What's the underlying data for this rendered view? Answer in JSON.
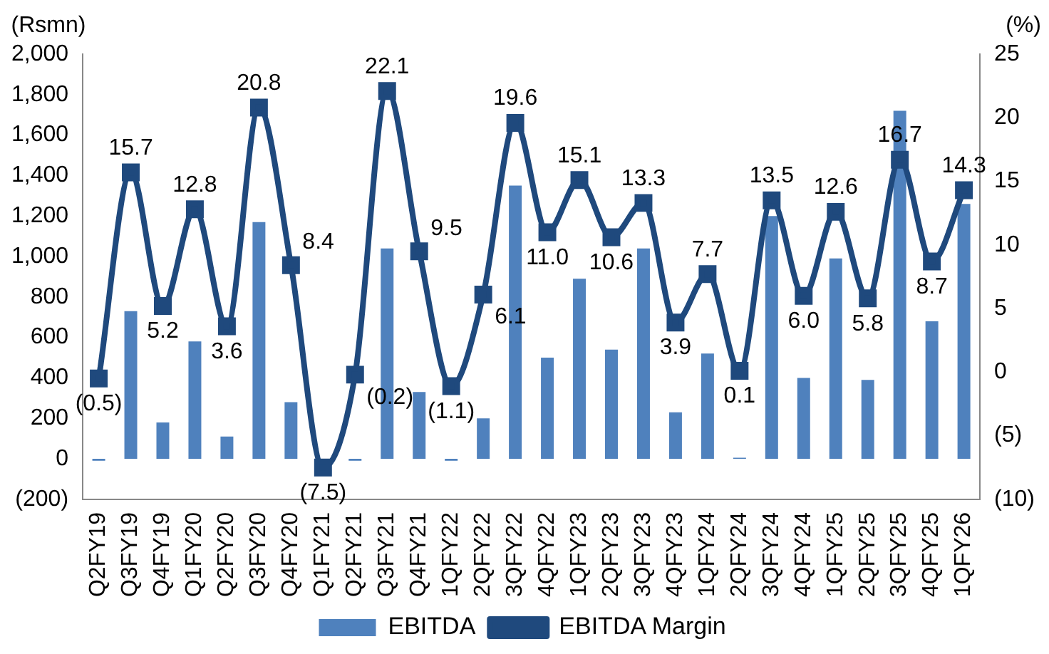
{
  "chart_data": {
    "type": "bar",
    "ylabel": "(Rsmn)",
    "y2label": "(%)",
    "categories": [
      "Q2FY19",
      "Q3FY19",
      "Q4FY19",
      "Q1FY20",
      "Q2FY20",
      "Q3FY20",
      "Q4FY20",
      "Q1FY21",
      "Q2FY21",
      "Q3FY21",
      "Q4FY21",
      "1QFY22",
      "2QFY22",
      "3QFY22",
      "4QFY22",
      "1QFY23",
      "2QFY23",
      "3QFY23",
      "4QFY23",
      "1QFY24",
      "2QFY24",
      "3QFY24",
      "4QFY24",
      "1QFY25",
      "2QFY25",
      "3QFY25",
      "4QFY25",
      "1QFY26"
    ],
    "series": [
      {
        "name": "EBITDA",
        "color": "#4f81bd",
        "values": [
          -10,
          730,
          180,
          580,
          110,
          1170,
          280,
          null,
          -10,
          1040,
          330,
          -10,
          200,
          1350,
          500,
          890,
          540,
          1040,
          230,
          520,
          5,
          1200,
          400,
          990,
          390,
          1720,
          680,
          1260
        ]
      },
      {
        "name": "EBITDA Margin",
        "type": "line",
        "axis": "y2",
        "color": "#1f497d",
        "marker": "square",
        "values": [
          -0.5,
          15.7,
          5.2,
          12.8,
          3.6,
          20.8,
          8.4,
          -7.5,
          -0.2,
          22.1,
          9.5,
          -1.1,
          6.1,
          19.6,
          11.0,
          15.1,
          10.6,
          13.3,
          3.9,
          7.7,
          0.1,
          13.5,
          6.0,
          12.6,
          5.8,
          16.7,
          8.7,
          14.3
        ],
        "value_labels": [
          "(0.5)",
          "15.7",
          "5.2",
          "12.8",
          "3.6",
          "20.8",
          "8.4",
          "(7.5)",
          "(0.2)",
          "22.1",
          "9.5",
          "(1.1)",
          "6.1",
          "19.6",
          "11.0",
          "15.1",
          "10.6",
          "13.3",
          "3.9",
          "7.7",
          "0.1",
          "13.5",
          "6.0",
          "12.6",
          "5.8",
          "16.7",
          "8.7",
          "14.3"
        ]
      }
    ],
    "ylim": [
      -200,
      2000
    ],
    "yticks": [
      {
        "value": -200,
        "label": "(200)"
      },
      0,
      200,
      400,
      600,
      800,
      {
        "value": 1000,
        "label": "1,000"
      },
      {
        "value": 1200,
        "label": "1,200"
      },
      {
        "value": 1400,
        "label": "1,400"
      },
      {
        "value": 1600,
        "label": "1,600"
      },
      {
        "value": 1800,
        "label": "1,800"
      },
      {
        "value": 2000,
        "label": "2,000"
      }
    ],
    "y2lim": [
      -10,
      25
    ],
    "y2ticks": [
      {
        "value": -10,
        "label": "(10)"
      },
      {
        "value": -5,
        "label": "(5)"
      },
      0,
      5,
      10,
      15,
      20,
      25
    ],
    "grid": false,
    "legend": "bottom"
  }
}
